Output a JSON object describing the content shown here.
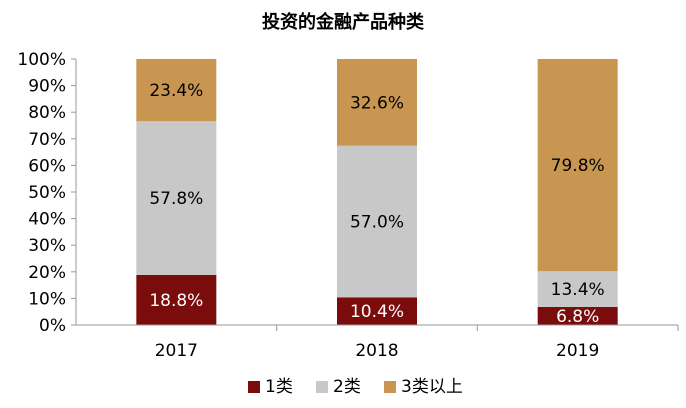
{
  "chart_data": {
    "type": "bar",
    "stacked": true,
    "title": "投资的金融产品种类",
    "categories": [
      "2017",
      "2018",
      "2019"
    ],
    "ylim": [
      0,
      100
    ],
    "y_ticks": [
      "0%",
      "10%",
      "20%",
      "30%",
      "40%",
      "50%",
      "60%",
      "70%",
      "80%",
      "90%",
      "100%"
    ],
    "grid": false,
    "legend_position": "bottom",
    "series": [
      {
        "name": "1类",
        "color": "#7B0C0C",
        "label_color": "#ffffff",
        "values": [
          18.8,
          10.4,
          6.8
        ],
        "labels": [
          "18.8%",
          "10.4%",
          "6.8%"
        ]
      },
      {
        "name": "2类",
        "color": "#C8C8C8",
        "label_color": "#000000",
        "values": [
          57.8,
          57.0,
          13.4
        ],
        "labels": [
          "57.8%",
          "57.0%",
          "13.4%"
        ]
      },
      {
        "name": "3类以上",
        "color": "#C89650",
        "label_color": "#000000",
        "values": [
          23.4,
          32.6,
          79.8
        ],
        "labels": [
          "23.4%",
          "32.6%",
          "79.8%"
        ]
      }
    ]
  }
}
